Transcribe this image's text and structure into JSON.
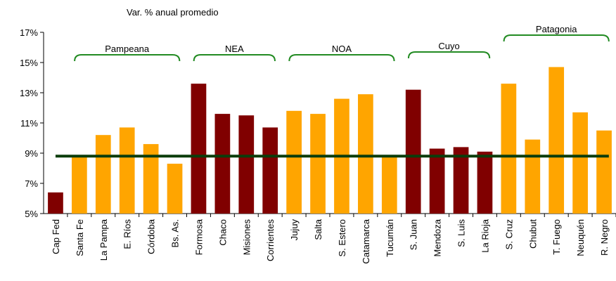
{
  "chart_data": {
    "type": "bar",
    "subtitle": "Var. % anual promedio",
    "categories": [
      "Cap Fed",
      "Santa Fe",
      "La Pampa",
      "E. Ríos",
      "Córdoba",
      "Bs. As.",
      "Formosa",
      "Chaco",
      "Misiones",
      "Corrientes",
      "Jujuy",
      "Salta",
      "S. Estero",
      "Catamarca",
      "Tucumán",
      "S. Juan",
      "Mendoza",
      "S. Luis",
      "La Rioja",
      "S. Cruz",
      "Chubut",
      "T. Fuego",
      "Neuquén",
      "R. Negro"
    ],
    "values": [
      6.4,
      8.8,
      10.2,
      10.7,
      9.6,
      8.3,
      13.6,
      11.6,
      11.5,
      10.7,
      11.8,
      11.6,
      12.6,
      12.9,
      8.8,
      13.2,
      9.3,
      9.4,
      9.1,
      13.6,
      9.9,
      14.7,
      11.7,
      10.5
    ],
    "colors": [
      "#800000",
      "#ffa500",
      "#ffa500",
      "#ffa500",
      "#ffa500",
      "#ffa500",
      "#800000",
      "#800000",
      "#800000",
      "#800000",
      "#ffa500",
      "#ffa500",
      "#ffa500",
      "#ffa500",
      "#ffa500",
      "#800000",
      "#800000",
      "#800000",
      "#800000",
      "#ffa500",
      "#ffa500",
      "#ffa500",
      "#ffa500",
      "#ffa500"
    ],
    "reference_line": {
      "value": 8.8,
      "color": "#0b3d0b"
    },
    "groups": [
      {
        "label": "Pampeana",
        "first": 1,
        "last": 5
      },
      {
        "label": "NEA",
        "first": 6,
        "last": 9
      },
      {
        "label": "NOA",
        "first": 10,
        "last": 14
      },
      {
        "label": "Cuyo",
        "first": 15,
        "last": 18
      },
      {
        "label": "Patagonia",
        "first": 19,
        "last": 23
      }
    ],
    "group_color": "#228b22",
    "ylim": [
      5,
      17
    ],
    "yticks": [
      {
        "value": 5,
        "label": "5%"
      },
      {
        "value": 7,
        "label": "7%"
      },
      {
        "value": 9,
        "label": "9%"
      },
      {
        "value": 11,
        "label": "11%"
      },
      {
        "value": 13,
        "label": "13%"
      },
      {
        "value": 15,
        "label": "15%"
      },
      {
        "value": 17,
        "label": "17%"
      }
    ]
  }
}
